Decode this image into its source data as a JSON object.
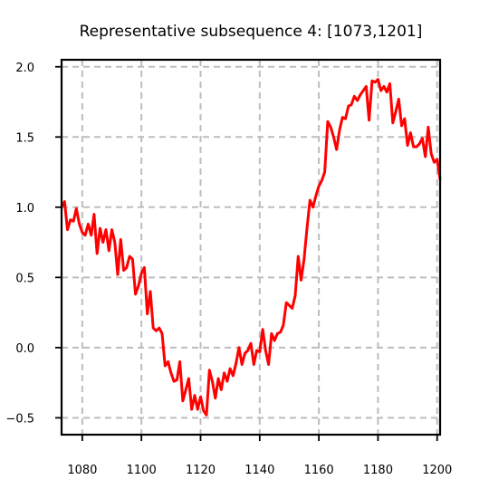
{
  "chart_data": {
    "type": "line",
    "title": "Representative subsequence 4: [1073,1201]",
    "xlabel": "",
    "ylabel": "",
    "xlim": [
      1073,
      1201
    ],
    "ylim": [
      -0.62,
      2.05
    ],
    "xticks": [
      1080,
      1100,
      1120,
      1140,
      1160,
      1180,
      1200
    ],
    "yticks": [
      -0.5,
      0.0,
      0.5,
      1.0,
      1.5,
      2.0
    ],
    "xtick_labels": [
      "1080",
      "1100",
      "1120",
      "1140",
      "1160",
      "1180",
      "1200"
    ],
    "ytick_labels": [
      "−0.5",
      "0.0",
      "0.5",
      "1.0",
      "1.5",
      "2.0"
    ],
    "grid": true,
    "series": [
      {
        "color": "#ff0000",
        "x": [
          1073,
          1074,
          1075,
          1076,
          1077,
          1078,
          1079,
          1080,
          1081,
          1082,
          1083,
          1084,
          1085,
          1086,
          1087,
          1088,
          1089,
          1090,
          1091,
          1092,
          1093,
          1094,
          1095,
          1096,
          1097,
          1098,
          1099,
          1100,
          1101,
          1102,
          1103,
          1104,
          1105,
          1106,
          1107,
          1108,
          1109,
          1110,
          1111,
          1112,
          1113,
          1114,
          1115,
          1116,
          1117,
          1118,
          1119,
          1120,
          1121,
          1122,
          1123,
          1124,
          1125,
          1126,
          1127,
          1128,
          1129,
          1130,
          1131,
          1132,
          1133,
          1134,
          1135,
          1136,
          1137,
          1138,
          1139,
          1140,
          1141,
          1142,
          1143,
          1144,
          1145,
          1146,
          1147,
          1148,
          1149,
          1150,
          1151,
          1152,
          1153,
          1154,
          1155,
          1156,
          1157,
          1158,
          1159,
          1160,
          1161,
          1162,
          1163,
          1164,
          1165,
          1166,
          1167,
          1168,
          1169,
          1170,
          1171,
          1172,
          1173,
          1174,
          1175,
          1176,
          1177,
          1178,
          1179,
          1180,
          1181,
          1182,
          1183,
          1184,
          1185,
          1186,
          1187,
          1188,
          1189,
          1190,
          1191,
          1192,
          1193,
          1194,
          1195,
          1196,
          1197,
          1198,
          1199,
          1200,
          1201
        ],
        "y": [
          1.0,
          1.04,
          0.84,
          0.91,
          0.9,
          0.99,
          0.88,
          0.82,
          0.8,
          0.88,
          0.8,
          0.95,
          0.67,
          0.85,
          0.75,
          0.84,
          0.69,
          0.84,
          0.75,
          0.52,
          0.77,
          0.55,
          0.57,
          0.65,
          0.63,
          0.38,
          0.44,
          0.53,
          0.57,
          0.24,
          0.4,
          0.14,
          0.12,
          0.14,
          0.1,
          -0.13,
          -0.1,
          -0.18,
          -0.24,
          -0.23,
          -0.1,
          -0.38,
          -0.3,
          -0.22,
          -0.44,
          -0.34,
          -0.44,
          -0.35,
          -0.45,
          -0.48,
          -0.16,
          -0.24,
          -0.36,
          -0.22,
          -0.3,
          -0.18,
          -0.24,
          -0.15,
          -0.2,
          -0.11,
          0.0,
          -0.12,
          -0.04,
          -0.02,
          0.03,
          -0.12,
          -0.02,
          -0.03,
          0.13,
          -0.02,
          -0.12,
          0.1,
          0.05,
          0.1,
          0.11,
          0.16,
          0.32,
          0.3,
          0.28,
          0.37,
          0.65,
          0.48,
          0.63,
          0.85,
          1.05,
          1.0,
          1.08,
          1.15,
          1.19,
          1.25,
          1.61,
          1.57,
          1.5,
          1.41,
          1.55,
          1.64,
          1.63,
          1.72,
          1.73,
          1.79,
          1.76,
          1.8,
          1.83,
          1.86,
          1.62,
          1.9,
          1.89,
          1.91,
          1.83,
          1.86,
          1.82,
          1.88,
          1.6,
          1.68,
          1.77,
          1.58,
          1.63,
          1.44,
          1.53,
          1.43,
          1.43,
          1.45,
          1.49,
          1.36,
          1.57,
          1.38,
          1.32,
          1.34,
          1.2
        ]
      }
    ]
  }
}
